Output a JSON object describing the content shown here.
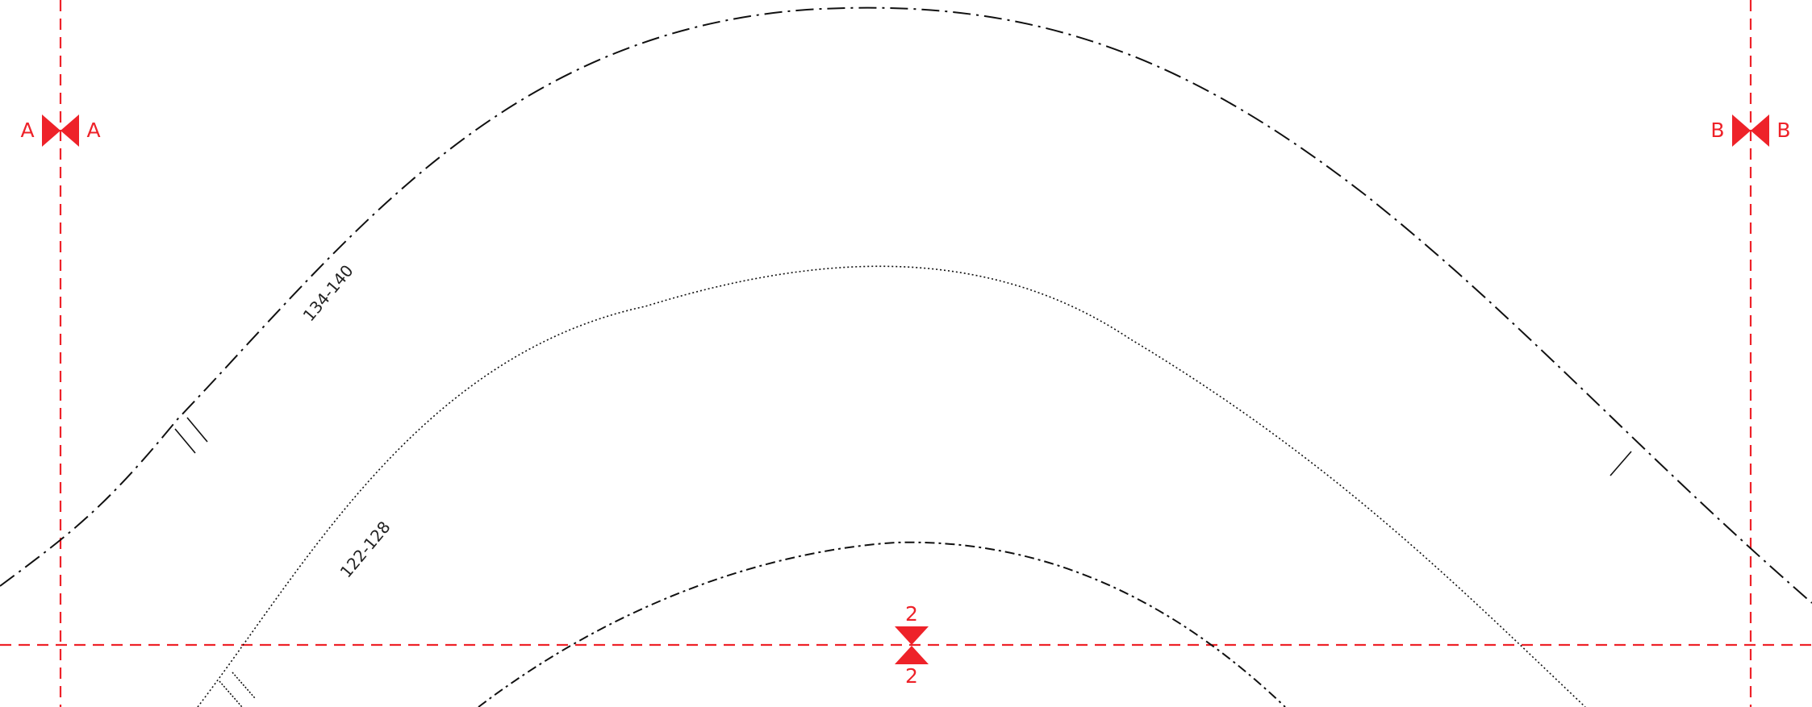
{
  "colors": {
    "background": "#ffffff",
    "curve": "#111111",
    "guide": "#ee2229"
  },
  "curves": {
    "outer": {
      "size_label": "134-140",
      "line_style": "dash-dot"
    },
    "middle": {
      "size_label": "122-128",
      "line_style": "dotted"
    },
    "inner": {
      "line_style": "dash-dot"
    }
  },
  "markers": {
    "left": {
      "left_label": "A",
      "right_label": "A"
    },
    "right": {
      "left_label": "B",
      "right_label": "B"
    },
    "bottom": {
      "top_label": "2",
      "bottom_label": "2"
    }
  }
}
